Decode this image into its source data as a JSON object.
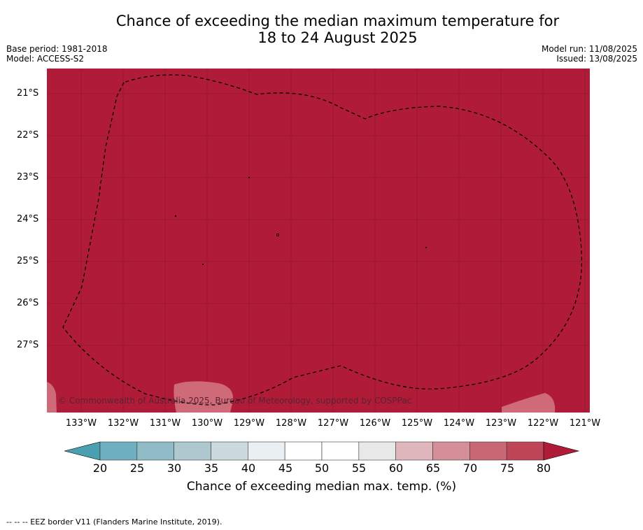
{
  "title_line1": "Chance of exceeding the median maximum temperature for",
  "title_line2": "18 to 24 August 2025",
  "base_period": "Base period: 1981-2018",
  "model": "Model: ACCESS-S2",
  "model_run": "Model run: 11/08/2025",
  "issued": "Issued: 13/08/2025",
  "map": {
    "lat_labels": [
      "21°S",
      "22°S",
      "23°S",
      "24°S",
      "25°S",
      "26°S",
      "27°S"
    ],
    "lon_labels": [
      "133°W",
      "132°W",
      "131°W",
      "130°W",
      "129°W",
      "128°W",
      "127°W",
      "126°W",
      "125°W",
      "124°W",
      "123°W",
      "122°W",
      "121°W"
    ],
    "copyright": "© Commonwealth of Australia 2025, Bureau of Meteorology, supported by COSPPac",
    "fill_color": "#b01c38",
    "dominant_category": "80"
  },
  "colorbar": {
    "label": "Chance of exceeding median max. temp. (%)",
    "ticks": [
      "20",
      "25",
      "30",
      "35",
      "40",
      "45",
      "50",
      "55",
      "60",
      "65",
      "70",
      "75",
      "80"
    ],
    "colors": [
      "#4aa0b0",
      "#6eb0c0",
      "#8fbcc6",
      "#adc9cf",
      "#cbdade",
      "#eaf0f2",
      "#ffffff",
      "#ffffff",
      "#e8e8e8",
      "#e0b6bd",
      "#d58f99",
      "#c96874",
      "#be4656",
      "#b01c38"
    ]
  },
  "footnote": "--  --  -- EEZ border V11 (Flanders Marine Institute, 2019)."
}
